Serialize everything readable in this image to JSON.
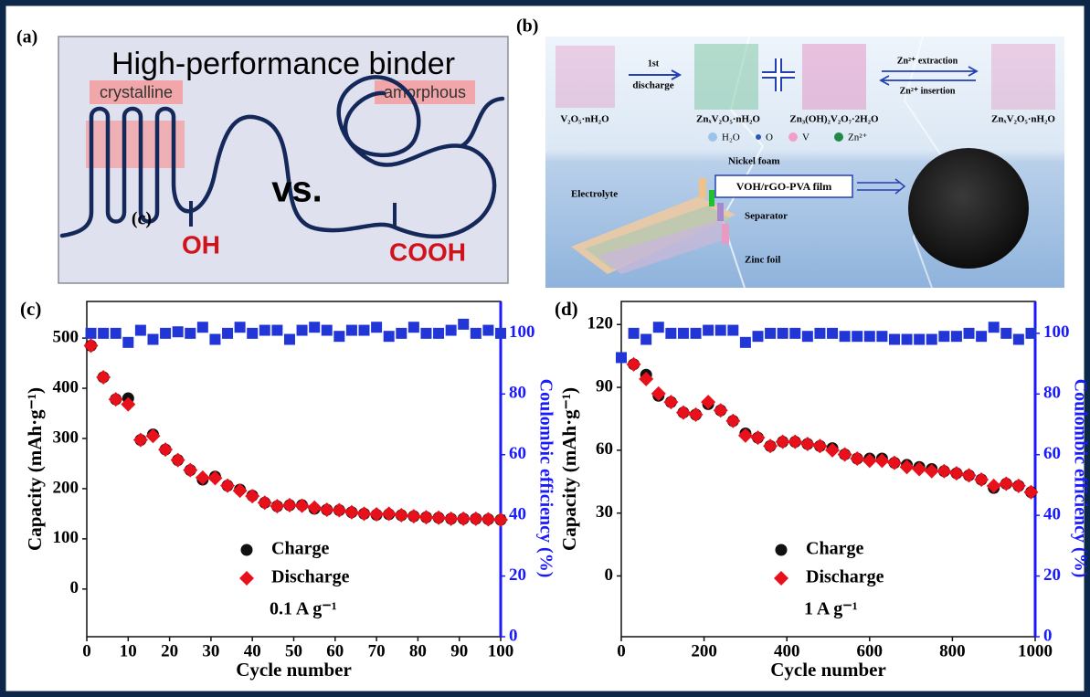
{
  "panels": {
    "a": {
      "label": "(a)",
      "title": "High-performance binder",
      "crystalline": "crystalline",
      "amorphous": "amorphous",
      "vs": "vs.",
      "oh": "OH",
      "cooh": "COOH",
      "stray_label": "(c)"
    },
    "b": {
      "label": "(b)",
      "reactant": "V₂O₅·nH₂O",
      "step_sup": "1st",
      "step": "discharge",
      "product1": "ZnₓV₂O₅·nH₂O",
      "product2": "Zn₃(OH)₂V₂O₇·2H₂O",
      "extraction": "Zn²⁺ extraction",
      "insertion": "Zn²⁺ insertion",
      "product3": "ZnₓV₂O₅·nH₂O",
      "atoms": [
        "H₂O",
        "O",
        "V",
        "Zn²⁺"
      ],
      "nickel": "Nickel foam",
      "electrolyte": "Electrolyte",
      "film": "VOH/rGO-PVA film",
      "separator": "Separator",
      "zinc": "Zinc foil"
    }
  },
  "chart_data": [
    {
      "type": "scatter",
      "panel_label": "(c)",
      "xlabel": "Cycle number",
      "ylabel": "Capacity (mAh·g⁻¹)",
      "y2label": "Coulombic efficiency (%)",
      "annotation": "0.1 A g⁻¹",
      "x": [
        1,
        4,
        7,
        10,
        13,
        16,
        19,
        22,
        25,
        28,
        31,
        34,
        37,
        40,
        43,
        46,
        49,
        52,
        55,
        58,
        61,
        64,
        67,
        70,
        73,
        76,
        79,
        82,
        85,
        88,
        91,
        94,
        97,
        100
      ],
      "xlim": [
        0,
        100
      ],
      "xticks": [
        0,
        10,
        20,
        30,
        40,
        50,
        60,
        70,
        80,
        90,
        100
      ],
      "ylim": [
        -95,
        573
      ],
      "yticks": [
        0,
        100,
        200,
        300,
        400,
        500
      ],
      "y2lim": [
        0,
        110.5
      ],
      "y2ticks": [
        0,
        20,
        40,
        60,
        80,
        100
      ],
      "series": [
        {
          "name": "Charge",
          "color": "#111111",
          "marker": "circle",
          "values": [
            485,
            422,
            378,
            380,
            297,
            308,
            278,
            257,
            237,
            218,
            224,
            206,
            198,
            186,
            172,
            165,
            167,
            167,
            160,
            158,
            157,
            153,
            150,
            148,
            149,
            147,
            145,
            143,
            142,
            140,
            140,
            140,
            139,
            138
          ]
        },
        {
          "name": "Discharge",
          "color": "#e8101a",
          "marker": "diamond",
          "values": [
            485,
            422,
            378,
            368,
            297,
            305,
            278,
            257,
            237,
            222,
            221,
            206,
            196,
            185,
            172,
            165,
            167,
            166,
            162,
            158,
            157,
            153,
            150,
            149,
            150,
            147,
            145,
            143,
            142,
            140,
            140,
            140,
            139,
            138
          ]
        },
        {
          "color": "#2236d8",
          "marker": "square",
          "axis": "y2",
          "values": [
            100,
            100,
            100,
            97,
            101,
            98,
            100,
            100.5,
            100,
            102,
            98,
            100,
            102,
            100,
            101,
            101,
            98,
            101,
            102,
            101,
            99,
            101,
            101,
            102,
            99,
            100,
            102,
            100,
            100,
            101,
            103,
            100,
            101,
            100
          ]
        }
      ]
    },
    {
      "type": "scatter",
      "panel_label": "(d)",
      "xlabel": "Cycle number",
      "ylabel": "Capacity (mAh·g⁻¹)",
      "y2label": "Coulombic efficiency (%)",
      "annotation": "1 A g⁻¹",
      "x": [
        0,
        30,
        60,
        90,
        120,
        150,
        180,
        210,
        240,
        270,
        300,
        330,
        360,
        390,
        420,
        450,
        480,
        510,
        540,
        570,
        600,
        630,
        660,
        690,
        720,
        750,
        780,
        810,
        840,
        870,
        900,
        930,
        960,
        990
      ],
      "xlim": [
        0,
        1000
      ],
      "xticks": [
        0,
        200,
        400,
        600,
        800,
        1000
      ],
      "ylim": [
        -29,
        131
      ],
      "yticks": [
        0,
        30,
        60,
        90,
        120
      ],
      "y2lim": [
        0,
        110.5
      ],
      "y2ticks": [
        0,
        20,
        40,
        60,
        80,
        100
      ],
      "series": [
        {
          "name": "Charge",
          "color": "#111111",
          "marker": "circle",
          "values": [
            null,
            101,
            96,
            86,
            83,
            78,
            77,
            82,
            79,
            74,
            68,
            66,
            62,
            64,
            64,
            63,
            62,
            61,
            58,
            56,
            56,
            56,
            54,
            53,
            52,
            51,
            50,
            49,
            48,
            46,
            42,
            44,
            43,
            40
          ]
        },
        {
          "name": "Discharge",
          "color": "#e8101a",
          "marker": "diamond",
          "values": [
            null,
            101,
            94,
            87,
            83,
            78,
            77,
            83,
            79,
            74,
            67,
            66,
            62,
            64,
            64,
            63,
            62,
            60,
            58,
            56,
            55,
            55,
            54,
            52,
            51,
            50,
            50,
            49,
            48,
            46,
            43,
            44,
            43,
            40
          ]
        },
        {
          "color": "#2236d8",
          "marker": "square",
          "axis": "y2",
          "values": [
            92,
            100,
            98,
            102,
            100,
            100,
            100,
            101,
            101,
            101,
            97,
            99,
            100,
            100,
            100,
            99,
            100,
            100,
            99,
            99,
            99,
            99,
            98,
            98,
            98,
            98,
            99,
            99,
            100,
            99,
            102,
            100,
            98,
            100
          ]
        }
      ]
    }
  ]
}
